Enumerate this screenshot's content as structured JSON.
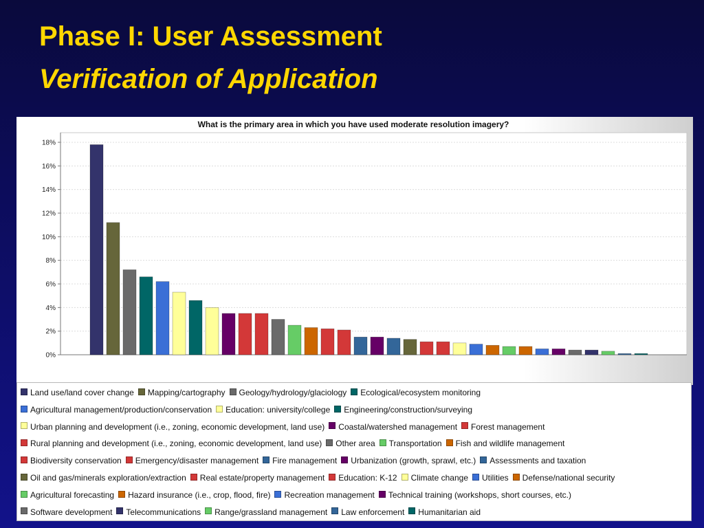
{
  "slide": {
    "title": "Phase I: User Assessment",
    "subtitle": "Verification of Application"
  },
  "chart_data": {
    "type": "bar",
    "title": "What is the primary area in which you have used moderate resolution imagery?",
    "xlabel": "",
    "ylabel": "",
    "ylim": [
      0,
      18
    ],
    "y_ticks": [
      "0%",
      "2%",
      "4%",
      "6%",
      "8%",
      "10%",
      "12%",
      "14%",
      "16%",
      "18%"
    ],
    "grid": true,
    "legend_position": "bottom",
    "categories": [
      "Land use/land cover change",
      "Mapping/cartography",
      "Geology/hydrology/glaciology",
      "Ecological/ecosystem monitoring",
      "Agricultural management/production/conservation",
      "Education: university/college",
      "Engineering/construction/surveying",
      "Urban planning and development (i.e., zoning, economic development, land use)",
      "Coastal/watershed management",
      "Forest management",
      "Rural planning and development (i.e., zoning, economic development, land use)",
      "Other area",
      "Transportation",
      "Fish and wildlife management",
      "Biodiversity conservation",
      "Emergency/disaster management",
      "Fire management",
      "Urbanization (growth, sprawl, etc.)",
      "Assessments and taxation",
      "Oil and gas/minerals exploration/extraction",
      "Real estate/property management",
      "Education: K-12",
      "Climate change",
      "Utilities",
      "Defense/national security",
      "Agricultural forecasting",
      "Hazard insurance (i.e., crop, flood, fire)",
      "Recreation management",
      "Technical training (workshops, short courses, etc.)",
      "Software development",
      "Telecommunications",
      "Range/grassland management",
      "Law enforcement",
      "Humanitarian aid"
    ],
    "values": [
      17.8,
      11.2,
      7.2,
      6.6,
      6.2,
      5.3,
      4.6,
      4.0,
      3.5,
      3.5,
      3.5,
      3.0,
      2.5,
      2.3,
      2.2,
      2.1,
      1.5,
      1.5,
      1.4,
      1.3,
      1.1,
      1.1,
      1.0,
      0.9,
      0.8,
      0.7,
      0.7,
      0.5,
      0.5,
      0.4,
      0.4,
      0.3,
      0.1,
      0.1
    ],
    "colors": [
      "#33336b",
      "#66663a",
      "#6a6a6a",
      "#006666",
      "#3a6fd6",
      "#ffff99",
      "#006666",
      "#ffff99",
      "#660066",
      "#d33838",
      "#d33838",
      "#6a6a6a",
      "#66cc66",
      "#cc6600",
      "#d33838",
      "#d33838",
      "#336699",
      "#660066",
      "#336699",
      "#66663a",
      "#d33838",
      "#d33838",
      "#ffff99",
      "#3a6fd6",
      "#cc6600",
      "#66cc66",
      "#cc6600",
      "#3a6fd6",
      "#660066",
      "#6a6a6a",
      "#33336b",
      "#66cc66",
      "#336699",
      "#006666"
    ]
  }
}
